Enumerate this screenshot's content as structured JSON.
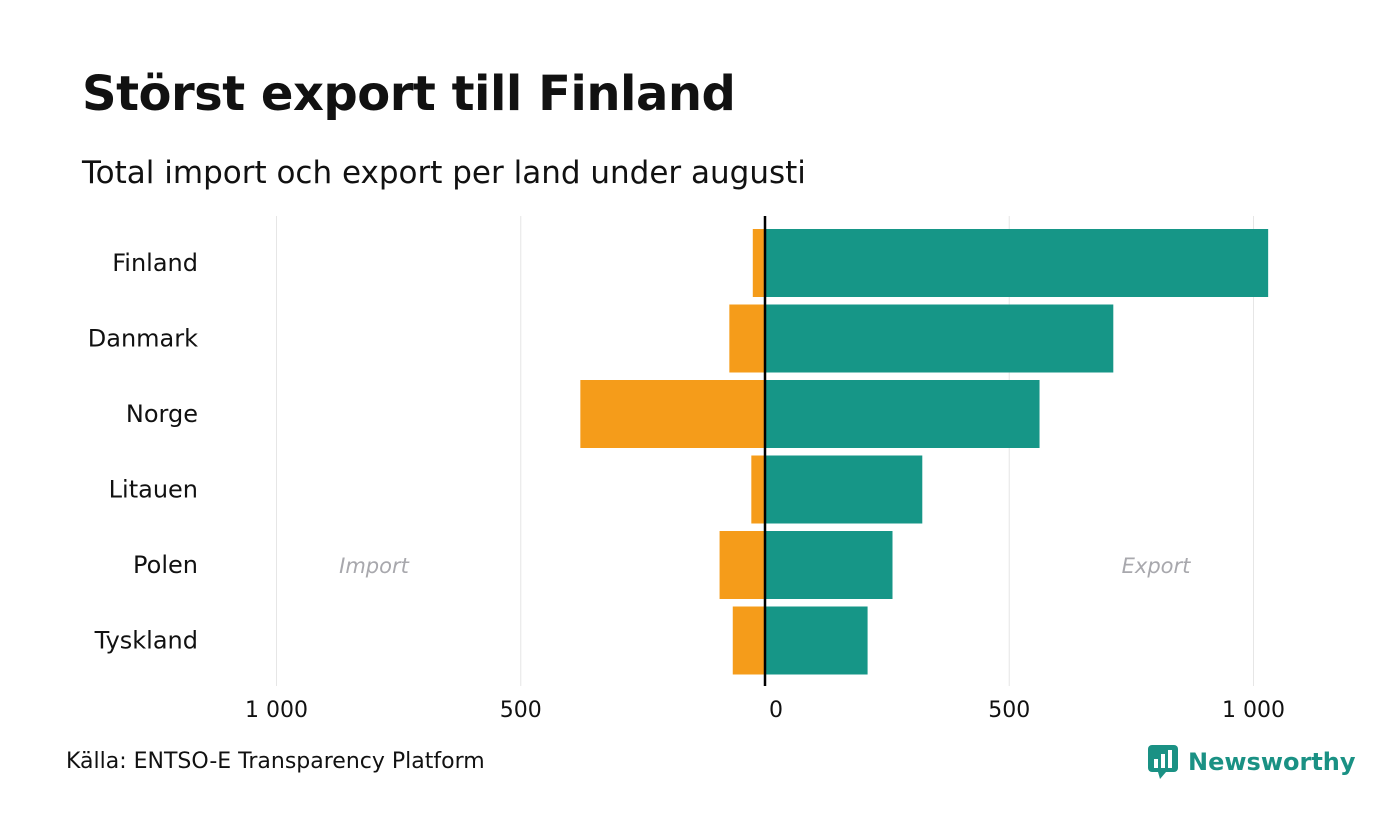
{
  "title": "Störst export till Finland",
  "subtitle": "Total import och export per land under augusti",
  "source": "Källa: ENTSO-E Transparency Platform",
  "brand": "Newsworthy",
  "colors": {
    "import": "#f59c1a",
    "export": "#169687",
    "brand": "#1a9184",
    "grid": "#e6e6e6",
    "annotation": "#a8a8ad"
  },
  "chart_data": {
    "type": "bar",
    "orientation": "horizontal",
    "diverging": true,
    "categories": [
      "Finland",
      "Danmark",
      "Norge",
      "Litauen",
      "Polen",
      "Tyskland"
    ],
    "series": [
      {
        "name": "Import",
        "values": [
          25,
          73,
          378,
          28,
          93,
          66
        ]
      },
      {
        "name": "Export",
        "values": [
          1030,
          713,
          562,
          322,
          261,
          210
        ]
      }
    ],
    "annotations": [
      "Import",
      "Export"
    ],
    "xlim": [
      -1000,
      1000
    ],
    "xticks": [
      -1000,
      -500,
      0,
      500,
      1000
    ],
    "xtick_labels": [
      "1 000",
      "500",
      "0",
      "500",
      "1 000"
    ],
    "grid": "vertical",
    "legend": "none"
  }
}
